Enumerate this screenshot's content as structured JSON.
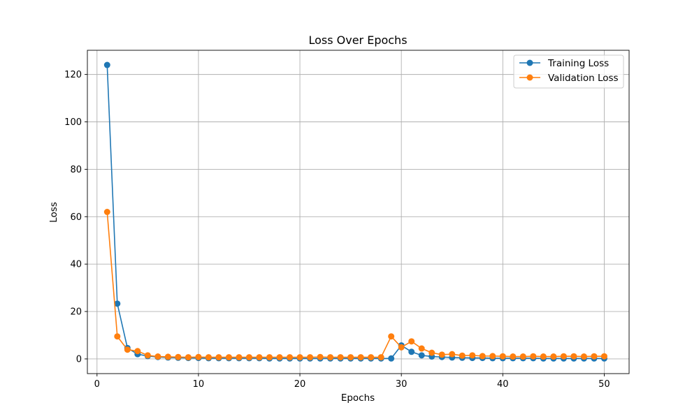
{
  "chart_data": {
    "type": "line",
    "title": "Loss Over Epochs",
    "xlabel": "Epochs",
    "ylabel": "Loss",
    "xlim": [
      -0.95,
      52.45
    ],
    "ylim": [
      -6.2,
      130.2
    ],
    "xticks": [
      0,
      10,
      20,
      30,
      40,
      50
    ],
    "yticks": [
      0,
      20,
      40,
      60,
      80,
      100,
      120
    ],
    "grid": true,
    "legend_position": "top-right",
    "x": [
      1,
      2,
      3,
      4,
      5,
      6,
      7,
      8,
      9,
      10,
      11,
      12,
      13,
      14,
      15,
      16,
      17,
      18,
      19,
      20,
      21,
      22,
      23,
      24,
      25,
      26,
      27,
      28,
      29,
      30,
      31,
      32,
      33,
      34,
      35,
      36,
      37,
      38,
      39,
      40,
      41,
      42,
      43,
      44,
      45,
      46,
      47,
      48,
      49,
      50
    ],
    "series": [
      {
        "name": "Training Loss",
        "color": "#1f77b4",
        "values": [
          124.0,
          23.3,
          4.6,
          2.0,
          1.2,
          0.8,
          0.6,
          0.5,
          0.4,
          0.4,
          0.3,
          0.3,
          0.3,
          0.3,
          0.3,
          0.3,
          0.2,
          0.2,
          0.2,
          0.2,
          0.2,
          0.2,
          0.2,
          0.2,
          0.2,
          0.2,
          0.2,
          0.2,
          0.2,
          5.7,
          3.0,
          1.5,
          1.0,
          0.8,
          0.6,
          0.5,
          0.4,
          0.4,
          0.3,
          0.3,
          0.3,
          0.3,
          0.3,
          0.2,
          0.2,
          0.2,
          0.2,
          0.2,
          0.2,
          0.2
        ]
      },
      {
        "name": "Validation Loss",
        "color": "#ff7f0e",
        "values": [
          62.0,
          9.5,
          3.9,
          3.3,
          1.5,
          1.0,
          0.9,
          0.8,
          0.7,
          0.8,
          0.7,
          0.7,
          0.7,
          0.7,
          0.7,
          0.7,
          0.7,
          0.7,
          0.7,
          0.7,
          0.7,
          0.8,
          0.7,
          0.7,
          0.7,
          0.7,
          0.7,
          0.7,
          9.5,
          4.9,
          7.4,
          4.4,
          2.6,
          1.8,
          2.0,
          1.4,
          1.5,
          1.2,
          1.2,
          1.1,
          1.0,
          1.0,
          1.1,
          1.0,
          1.0,
          1.1,
          1.1,
          1.0,
          1.1,
          1.1
        ]
      }
    ]
  }
}
